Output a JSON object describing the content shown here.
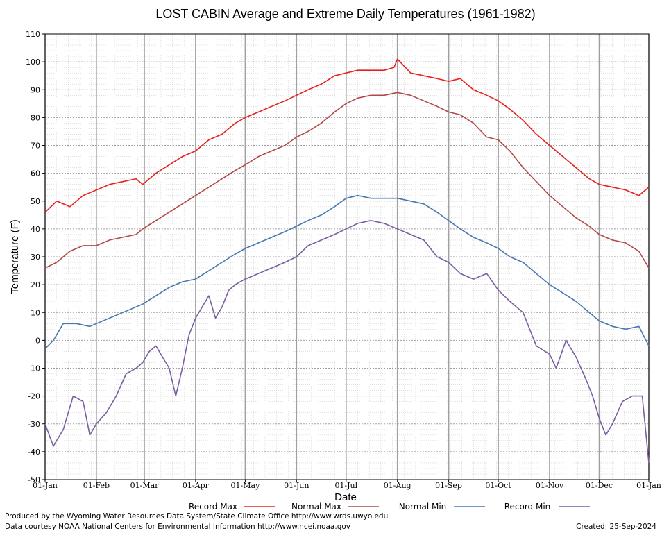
{
  "chart_data": {
    "type": "line",
    "title": "LOST CABIN Average and Extreme Daily Temperatures (1961-1982)",
    "xlabel": "Date",
    "ylabel": "Temperature (F)",
    "ylim": [
      -50,
      110
    ],
    "yticks": [
      110,
      100,
      90,
      80,
      70,
      60,
      50,
      40,
      30,
      20,
      10,
      0,
      -10,
      -20,
      -30,
      -40,
      -50
    ],
    "xlim": [
      1,
      366
    ],
    "xticks": [
      {
        "day": 1,
        "label": "01-Jan"
      },
      {
        "day": 32,
        "label": "01-Feb"
      },
      {
        "day": 61,
        "label": "01-Mar"
      },
      {
        "day": 92,
        "label": "01-Apr"
      },
      {
        "day": 122,
        "label": "01-May"
      },
      {
        "day": 153,
        "label": "01-Jun"
      },
      {
        "day": 183,
        "label": "01-Jul"
      },
      {
        "day": 214,
        "label": "01-Aug"
      },
      {
        "day": 245,
        "label": "01-Sep"
      },
      {
        "day": 275,
        "label": "01-Oct"
      },
      {
        "day": 306,
        "label": "01-Nov"
      },
      {
        "day": 336,
        "label": "01-Dec"
      },
      {
        "day": 366,
        "label": "01-Jan"
      }
    ],
    "grid": true,
    "legend_position": "bottom",
    "series": [
      {
        "name": "Record Max",
        "color": "#e8201c",
        "points": [
          [
            1,
            46
          ],
          [
            8,
            50
          ],
          [
            16,
            48
          ],
          [
            24,
            52
          ],
          [
            32,
            54
          ],
          [
            40,
            56
          ],
          [
            48,
            57
          ],
          [
            56,
            58
          ],
          [
            60,
            56
          ],
          [
            68,
            60
          ],
          [
            76,
            63
          ],
          [
            84,
            66
          ],
          [
            92,
            68
          ],
          [
            100,
            72
          ],
          [
            108,
            74
          ],
          [
            116,
            78
          ],
          [
            122,
            80
          ],
          [
            130,
            82
          ],
          [
            138,
            84
          ],
          [
            146,
            86
          ],
          [
            153,
            88
          ],
          [
            160,
            90
          ],
          [
            168,
            92
          ],
          [
            176,
            95
          ],
          [
            183,
            96
          ],
          [
            190,
            97
          ],
          [
            198,
            97
          ],
          [
            206,
            97
          ],
          [
            212,
            98
          ],
          [
            214,
            101
          ],
          [
            222,
            96
          ],
          [
            230,
            95
          ],
          [
            238,
            94
          ],
          [
            245,
            93
          ],
          [
            252,
            94
          ],
          [
            260,
            90
          ],
          [
            268,
            88
          ],
          [
            275,
            86
          ],
          [
            282,
            83
          ],
          [
            290,
            79
          ],
          [
            298,
            74
          ],
          [
            306,
            70
          ],
          [
            314,
            66
          ],
          [
            322,
            62
          ],
          [
            330,
            58
          ],
          [
            336,
            56
          ],
          [
            344,
            55
          ],
          [
            352,
            54
          ],
          [
            360,
            52
          ],
          [
            366,
            55
          ]
        ]
      },
      {
        "name": "Normal Max",
        "color": "#b04848",
        "points": [
          [
            1,
            26
          ],
          [
            8,
            28
          ],
          [
            16,
            32
          ],
          [
            24,
            34
          ],
          [
            32,
            34
          ],
          [
            40,
            36
          ],
          [
            48,
            37
          ],
          [
            56,
            38
          ],
          [
            60,
            40
          ],
          [
            68,
            43
          ],
          [
            76,
            46
          ],
          [
            84,
            49
          ],
          [
            92,
            52
          ],
          [
            100,
            55
          ],
          [
            108,
            58
          ],
          [
            116,
            61
          ],
          [
            122,
            63
          ],
          [
            130,
            66
          ],
          [
            138,
            68
          ],
          [
            146,
            70
          ],
          [
            153,
            73
          ],
          [
            160,
            75
          ],
          [
            168,
            78
          ],
          [
            176,
            82
          ],
          [
            183,
            85
          ],
          [
            190,
            87
          ],
          [
            198,
            88
          ],
          [
            206,
            88
          ],
          [
            214,
            89
          ],
          [
            222,
            88
          ],
          [
            230,
            86
          ],
          [
            238,
            84
          ],
          [
            245,
            82
          ],
          [
            252,
            81
          ],
          [
            260,
            78
          ],
          [
            268,
            73
          ],
          [
            275,
            72
          ],
          [
            282,
            68
          ],
          [
            290,
            62
          ],
          [
            298,
            57
          ],
          [
            306,
            52
          ],
          [
            314,
            48
          ],
          [
            322,
            44
          ],
          [
            330,
            41
          ],
          [
            336,
            38
          ],
          [
            344,
            36
          ],
          [
            352,
            35
          ],
          [
            360,
            32
          ],
          [
            366,
            26
          ]
        ]
      },
      {
        "name": "Normal Min",
        "color": "#4577b0",
        "points": [
          [
            1,
            -3
          ],
          [
            6,
            0
          ],
          [
            12,
            6
          ],
          [
            20,
            6
          ],
          [
            28,
            5
          ],
          [
            32,
            6
          ],
          [
            40,
            8
          ],
          [
            48,
            10
          ],
          [
            56,
            12
          ],
          [
            60,
            13
          ],
          [
            68,
            16
          ],
          [
            76,
            19
          ],
          [
            84,
            21
          ],
          [
            92,
            22
          ],
          [
            100,
            25
          ],
          [
            108,
            28
          ],
          [
            116,
            31
          ],
          [
            122,
            33
          ],
          [
            130,
            35
          ],
          [
            138,
            37
          ],
          [
            146,
            39
          ],
          [
            153,
            41
          ],
          [
            160,
            43
          ],
          [
            168,
            45
          ],
          [
            176,
            48
          ],
          [
            183,
            51
          ],
          [
            190,
            52
          ],
          [
            198,
            51
          ],
          [
            206,
            51
          ],
          [
            214,
            51
          ],
          [
            222,
            50
          ],
          [
            230,
            49
          ],
          [
            238,
            46
          ],
          [
            245,
            43
          ],
          [
            252,
            40
          ],
          [
            260,
            37
          ],
          [
            268,
            35
          ],
          [
            275,
            33
          ],
          [
            282,
            30
          ],
          [
            290,
            28
          ],
          [
            298,
            24
          ],
          [
            306,
            20
          ],
          [
            314,
            17
          ],
          [
            322,
            14
          ],
          [
            330,
            10
          ],
          [
            336,
            7
          ],
          [
            344,
            5
          ],
          [
            352,
            4
          ],
          [
            360,
            5
          ],
          [
            366,
            -2
          ]
        ]
      },
      {
        "name": "Record Min",
        "color": "#7a5da0",
        "points": [
          [
            1,
            -30
          ],
          [
            6,
            -38
          ],
          [
            12,
            -32
          ],
          [
            18,
            -20
          ],
          [
            24,
            -22
          ],
          [
            28,
            -34
          ],
          [
            32,
            -30
          ],
          [
            38,
            -26
          ],
          [
            44,
            -20
          ],
          [
            50,
            -12
          ],
          [
            56,
            -10
          ],
          [
            60,
            -8
          ],
          [
            64,
            -4
          ],
          [
            68,
            -2
          ],
          [
            72,
            -6
          ],
          [
            76,
            -10
          ],
          [
            80,
            -20
          ],
          [
            84,
            -10
          ],
          [
            88,
            2
          ],
          [
            92,
            8
          ],
          [
            96,
            12
          ],
          [
            100,
            16
          ],
          [
            104,
            8
          ],
          [
            108,
            12
          ],
          [
            112,
            18
          ],
          [
            116,
            20
          ],
          [
            122,
            22
          ],
          [
            130,
            24
          ],
          [
            138,
            26
          ],
          [
            146,
            28
          ],
          [
            153,
            30
          ],
          [
            160,
            34
          ],
          [
            168,
            36
          ],
          [
            176,
            38
          ],
          [
            183,
            40
          ],
          [
            190,
            42
          ],
          [
            198,
            43
          ],
          [
            206,
            42
          ],
          [
            214,
            40
          ],
          [
            222,
            38
          ],
          [
            230,
            36
          ],
          [
            238,
            30
          ],
          [
            245,
            28
          ],
          [
            252,
            24
          ],
          [
            260,
            22
          ],
          [
            268,
            24
          ],
          [
            275,
            18
          ],
          [
            282,
            14
          ],
          [
            290,
            10
          ],
          [
            298,
            -2
          ],
          [
            306,
            -5
          ],
          [
            310,
            -10
          ],
          [
            316,
            0
          ],
          [
            322,
            -6
          ],
          [
            328,
            -14
          ],
          [
            332,
            -20
          ],
          [
            336,
            -28
          ],
          [
            340,
            -34
          ],
          [
            344,
            -30
          ],
          [
            350,
            -22
          ],
          [
            356,
            -20
          ],
          [
            362,
            -20
          ],
          [
            366,
            -44
          ]
        ]
      }
    ]
  },
  "footer": {
    "line1": "Produced by the Wyoming Water Resources Data System/State Climate Office http://www.wrds.uwyo.edu",
    "line2": "Data courtesy NOAA National Centers for Environmental Information http://www.ncei.noaa.gov",
    "created": "Created:  25-Sep-2024"
  }
}
